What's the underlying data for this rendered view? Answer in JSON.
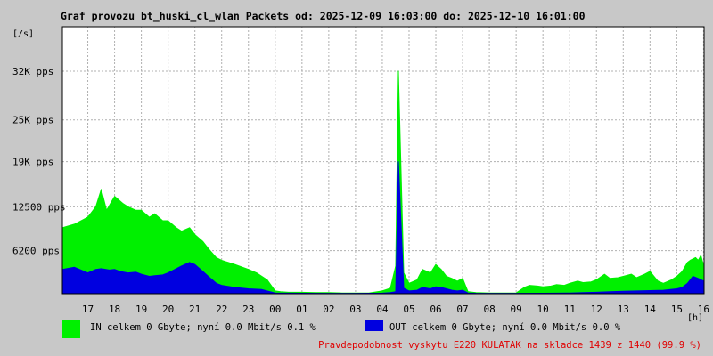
{
  "colors": {
    "background": "#c8c8c8",
    "plot_background": "#ffffff",
    "in_series": "#00f000",
    "out_series": "#0000e0",
    "note": "#e00000",
    "grid": "#b0b0b0"
  },
  "chart_data": {
    "type": "area",
    "title": "Graf provozu bt_huski_cl_wlan Packets od: 2025-12-09 16:03:00 do: 2025-12-10 16:01:00",
    "ylabel": "[/s]",
    "xlabel": "[h]",
    "ylim": [
      0,
      38400
    ],
    "yticks": [
      {
        "value": 6200,
        "label": "6200 pps"
      },
      {
        "value": 12500,
        "label": "12500 pps"
      },
      {
        "value": 19000,
        "label": "19K pps"
      },
      {
        "value": 25000,
        "label": "25K pps"
      },
      {
        "value": 32000,
        "label": "32K pps"
      }
    ],
    "xlim": [
      16.05,
      40.02
    ],
    "xticks": [
      {
        "value": 17,
        "label": "17"
      },
      {
        "value": 18,
        "label": "18"
      },
      {
        "value": 19,
        "label": "19"
      },
      {
        "value": 20,
        "label": "20"
      },
      {
        "value": 21,
        "label": "21"
      },
      {
        "value": 22,
        "label": "22"
      },
      {
        "value": 23,
        "label": "23"
      },
      {
        "value": 24,
        "label": "00"
      },
      {
        "value": 25,
        "label": "01"
      },
      {
        "value": 26,
        "label": "02"
      },
      {
        "value": 27,
        "label": "03"
      },
      {
        "value": 28,
        "label": "04"
      },
      {
        "value": 29,
        "label": "05"
      },
      {
        "value": 30,
        "label": "06"
      },
      {
        "value": 31,
        "label": "07"
      },
      {
        "value": 32,
        "label": "08"
      },
      {
        "value": 33,
        "label": "09"
      },
      {
        "value": 34,
        "label": "10"
      },
      {
        "value": 35,
        "label": "11"
      },
      {
        "value": 36,
        "label": "12"
      },
      {
        "value": 37,
        "label": "13"
      },
      {
        "value": 38,
        "label": "14"
      },
      {
        "value": 39,
        "label": "15"
      },
      {
        "value": 40,
        "label": "16"
      }
    ],
    "grid": true,
    "series": [
      {
        "name": "IN",
        "x": [
          16.05,
          16.5,
          17.0,
          17.3,
          17.5,
          17.7,
          18.0,
          18.3,
          18.5,
          18.8,
          19.0,
          19.3,
          19.5,
          19.8,
          20.0,
          20.3,
          20.5,
          20.8,
          21.0,
          21.3,
          21.5,
          21.8,
          22.0,
          22.5,
          23.0,
          23.3,
          23.7,
          24.0,
          24.2,
          24.5,
          25.0,
          25.5,
          26.0,
          26.5,
          27.0,
          27.5,
          28.0,
          28.3,
          28.5,
          28.6,
          28.8,
          29.0,
          29.3,
          29.5,
          29.8,
          30.0,
          30.2,
          30.4,
          30.6,
          30.8,
          31.0,
          31.2,
          31.5,
          32.0,
          32.5,
          33.0,
          33.3,
          33.5,
          33.8,
          34.0,
          34.3,
          34.5,
          34.8,
          35.0,
          35.3,
          35.5,
          35.8,
          36.0,
          36.3,
          36.5,
          36.8,
          37.0,
          37.3,
          37.5,
          37.8,
          38.0,
          38.3,
          38.5,
          38.8,
          39.0,
          39.2,
          39.4,
          39.5,
          39.6,
          39.7,
          39.8,
          39.9,
          40.02
        ],
        "values": [
          9500,
          10000,
          11000,
          12500,
          15000,
          12000,
          14000,
          13000,
          12500,
          12000,
          12000,
          11000,
          11500,
          10500,
          10500,
          9500,
          9000,
          9500,
          8500,
          7500,
          6500,
          5200,
          4800,
          4200,
          3500,
          3000,
          2000,
          400,
          300,
          200,
          200,
          150,
          150,
          100,
          100,
          100,
          400,
          800,
          4000,
          32000,
          3000,
          1500,
          2000,
          3500,
          3000,
          4200,
          3500,
          2500,
          2200,
          1800,
          2200,
          300,
          150,
          100,
          100,
          100,
          900,
          1200,
          1100,
          1000,
          1100,
          1300,
          1200,
          1500,
          1800,
          1600,
          1700,
          2000,
          2800,
          2200,
          2300,
          2500,
          2800,
          2300,
          2800,
          3200,
          1800,
          1500,
          2000,
          2500,
          3200,
          4500,
          4800,
          5000,
          5200,
          4800,
          5500,
          3800
        ]
      },
      {
        "name": "OUT",
        "x": [
          16.05,
          16.5,
          17.0,
          17.3,
          17.5,
          17.8,
          18.0,
          18.2,
          18.5,
          18.8,
          19.0,
          19.3,
          19.5,
          19.8,
          20.0,
          20.3,
          20.5,
          20.8,
          21.0,
          21.3,
          21.5,
          21.8,
          22.0,
          22.5,
          23.0,
          23.5,
          24.0,
          24.5,
          25.0,
          26.0,
          27.0,
          28.0,
          28.3,
          28.5,
          28.6,
          28.8,
          29.0,
          29.3,
          29.5,
          29.8,
          30.0,
          30.2,
          30.4,
          30.6,
          30.8,
          31.0,
          31.2,
          31.5,
          32.0,
          33.0,
          34.0,
          34.5,
          35.0,
          35.5,
          36.0,
          36.5,
          37.0,
          37.5,
          38.0,
          38.5,
          39.0,
          39.2,
          39.4,
          39.6,
          39.8,
          40.02
        ],
        "values": [
          3500,
          3800,
          3000,
          3500,
          3600,
          3400,
          3500,
          3200,
          3000,
          3100,
          2800,
          2500,
          2600,
          2700,
          3000,
          3600,
          4000,
          4500,
          4200,
          3200,
          2500,
          1500,
          1200,
          900,
          700,
          600,
          100,
          80,
          60,
          50,
          50,
          80,
          150,
          300,
          19000,
          800,
          400,
          500,
          900,
          700,
          1000,
          900,
          700,
          500,
          400,
          500,
          100,
          60,
          50,
          50,
          60,
          80,
          100,
          150,
          200,
          300,
          350,
          400,
          450,
          500,
          700,
          900,
          1500,
          2500,
          2200,
          1800
        ]
      }
    ]
  },
  "legend": {
    "in_text": "IN celkem 0 Gbyte; nyní   0.0 Mbit/s 0.1 %",
    "out_text": "OUT celkem 0 Gbyte; nyní   0.0 Mbit/s 0.0 %"
  },
  "note": {
    "text": "Pravdepodobnost vyskytu E220 KULATAK na skladce 1439 z 1440 (99.9 %)"
  }
}
